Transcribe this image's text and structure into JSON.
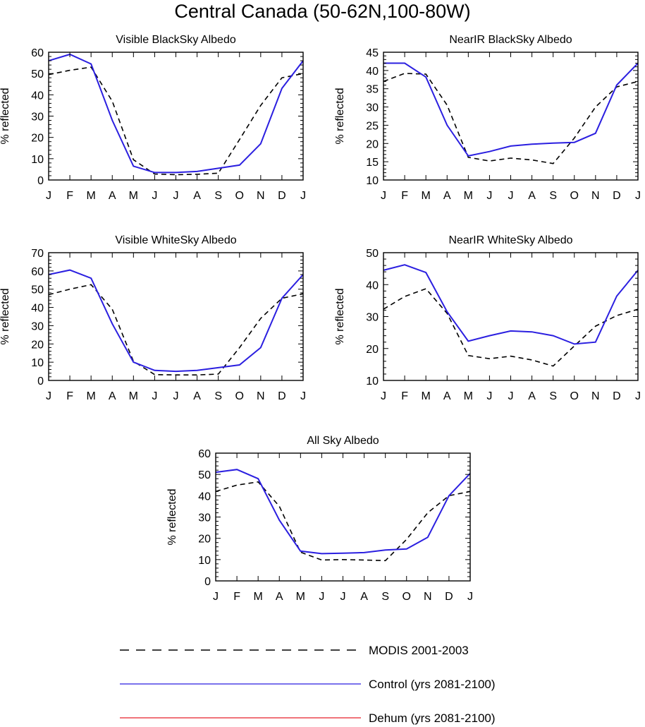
{
  "title": "Central Canada (50-62N,100-80W)",
  "colors": {
    "modis": "#000000",
    "control": "#2b1fe0",
    "dehum": "#e8202a"
  },
  "legend": [
    {
      "label": "MODIS 2001-2003",
      "style": "dashed",
      "color": "#000000"
    },
    {
      "label": "Control (yrs 2081-2100)",
      "style": "solid",
      "color": "#2b1fe0"
    },
    {
      "label": "Dehum (yrs 2081-2100)",
      "style": "solid",
      "color": "#e8202a"
    }
  ],
  "chart_data": [
    {
      "type": "line",
      "title": "Visible BlackSky Albedo",
      "xlabel": "",
      "ylabel": "% reflected",
      "categories": [
        "J",
        "F",
        "M",
        "A",
        "M",
        "J",
        "J",
        "A",
        "S",
        "O",
        "N",
        "D",
        "J"
      ],
      "ylim": [
        0,
        60
      ],
      "yticks": [
        0,
        10,
        20,
        30,
        40,
        50,
        60
      ],
      "series": [
        {
          "name": "MODIS 2001-2003",
          "values": [
            49.5,
            51.5,
            53,
            37,
            9.5,
            2.8,
            2.5,
            2.7,
            3.2,
            19,
            35,
            48,
            50
          ]
        },
        {
          "name": "Control (yrs 2081-2100)",
          "values": [
            56,
            59,
            54.5,
            28,
            6.5,
            3.5,
            3.5,
            4,
            5.5,
            7,
            17,
            43,
            56
          ]
        }
      ]
    },
    {
      "type": "line",
      "title": "NearIR BlackSky Albedo",
      "xlabel": "",
      "ylabel": "% reflected",
      "categories": [
        "J",
        "F",
        "M",
        "A",
        "M",
        "J",
        "J",
        "A",
        "S",
        "O",
        "N",
        "D",
        "J"
      ],
      "ylim": [
        10,
        45
      ],
      "yticks": [
        10,
        15,
        20,
        25,
        30,
        35,
        40,
        45
      ],
      "series": [
        {
          "name": "MODIS 2001-2003",
          "values": [
            37,
            39.2,
            39,
            30.5,
            16.2,
            15.2,
            16,
            15.5,
            14.5,
            21.5,
            30,
            35.5,
            37
          ]
        },
        {
          "name": "Control (yrs 2081-2100)",
          "values": [
            42,
            42,
            38.2,
            25,
            16.6,
            17.8,
            19.3,
            19.8,
            20.1,
            20.3,
            22.8,
            36,
            42
          ]
        }
      ]
    },
    {
      "type": "line",
      "title": "Visible WhiteSky Albedo",
      "xlabel": "",
      "ylabel": "% reflected",
      "categories": [
        "J",
        "F",
        "M",
        "A",
        "M",
        "J",
        "J",
        "A",
        "S",
        "O",
        "N",
        "D",
        "J"
      ],
      "ylim": [
        0,
        70
      ],
      "yticks": [
        0,
        10,
        20,
        30,
        40,
        50,
        60,
        70
      ],
      "series": [
        {
          "name": "MODIS 2001-2003",
          "values": [
            47,
            50,
            52.5,
            39,
            10.5,
            3.2,
            3,
            3,
            3.5,
            18,
            34,
            45,
            47.5
          ]
        },
        {
          "name": "Control (yrs 2081-2100)",
          "values": [
            58,
            60.5,
            56,
            31,
            10,
            5.5,
            5,
            5.5,
            7,
            8.5,
            18,
            45,
            58
          ]
        }
      ]
    },
    {
      "type": "line",
      "title": "NearIR WhiteSky Albedo",
      "xlabel": "",
      "ylabel": "% reflected",
      "categories": [
        "J",
        "F",
        "M",
        "A",
        "M",
        "J",
        "J",
        "A",
        "S",
        "O",
        "N",
        "D",
        "J"
      ],
      "ylim": [
        10,
        50
      ],
      "yticks": [
        10,
        20,
        30,
        40,
        50
      ],
      "series": [
        {
          "name": "MODIS 2001-2003",
          "values": [
            32.3,
            36.3,
            38.7,
            31,
            17.8,
            16.8,
            17.6,
            16.4,
            14.5,
            20.8,
            27,
            30.3,
            32.3
          ]
        },
        {
          "name": "Control (yrs 2081-2100)",
          "values": [
            44.5,
            46.2,
            43.8,
            31.5,
            22.3,
            24,
            25.5,
            25.2,
            24,
            21.4,
            22,
            36.4,
            44.5
          ]
        }
      ]
    },
    {
      "type": "line",
      "title": "All Sky Albedo",
      "xlabel": "",
      "ylabel": "% reflected",
      "categories": [
        "J",
        "F",
        "M",
        "A",
        "M",
        "J",
        "J",
        "A",
        "S",
        "O",
        "N",
        "D",
        "J"
      ],
      "ylim": [
        0,
        60
      ],
      "yticks": [
        0,
        10,
        20,
        30,
        40,
        50,
        60
      ],
      "series": [
        {
          "name": "MODIS 2001-2003",
          "values": [
            42,
            45,
            46.5,
            35,
            13.5,
            9.8,
            10,
            9.8,
            9.5,
            19.5,
            32,
            40,
            42
          ]
        },
        {
          "name": "Control (yrs 2081-2100)",
          "values": [
            51,
            52.3,
            48,
            28.5,
            14,
            12.8,
            13,
            13.3,
            14.5,
            15,
            20.5,
            40,
            50.5
          ]
        }
      ]
    }
  ]
}
